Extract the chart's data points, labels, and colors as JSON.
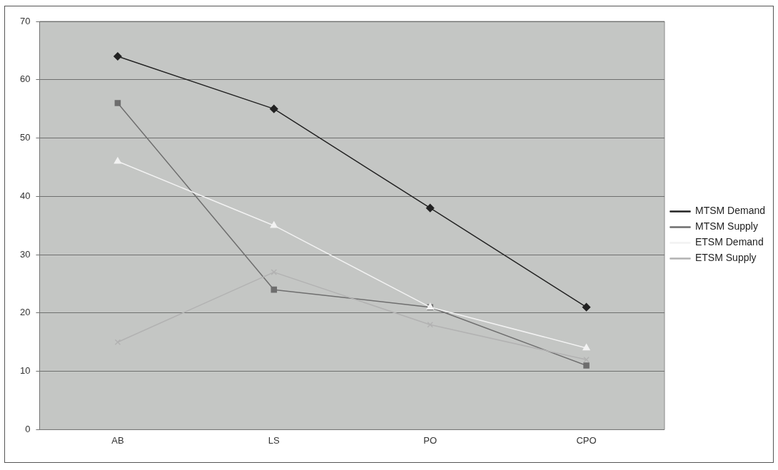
{
  "chart_data": {
    "type": "line",
    "categories": [
      "AB",
      "LS",
      "PO",
      "CPO"
    ],
    "series": [
      {
        "name": "MTSM Demand",
        "color": "#222222",
        "marker": "diamond",
        "values": [
          64,
          55,
          38,
          21
        ]
      },
      {
        "name": "MTSM Supply",
        "color": "#6e6e6e",
        "marker": "square",
        "values": [
          56,
          24,
          21,
          11
        ]
      },
      {
        "name": "ETSM Demand",
        "color": "#f2f2f2",
        "marker": "triangle",
        "values": [
          46,
          35,
          21,
          14
        ]
      },
      {
        "name": "ETSM Supply",
        "color": "#b2b2b2",
        "marker": "cross",
        "values": [
          15,
          27,
          18,
          12
        ]
      }
    ],
    "ylim": [
      0,
      70
    ],
    "yticks": [
      0,
      10,
      20,
      30,
      40,
      50,
      60,
      70
    ],
    "grid": "y",
    "legend": "right",
    "line_style": "solid"
  }
}
